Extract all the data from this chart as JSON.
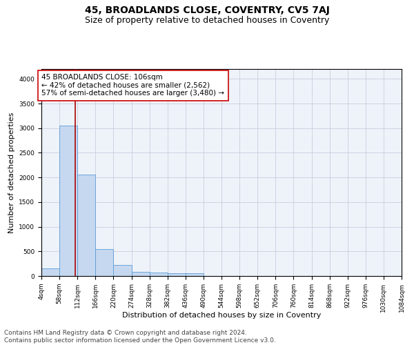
{
  "title": "45, BROADLANDS CLOSE, COVENTRY, CV5 7AJ",
  "subtitle": "Size of property relative to detached houses in Coventry",
  "xlabel": "Distribution of detached houses by size in Coventry",
  "ylabel": "Number of detached properties",
  "footer_line1": "Contains HM Land Registry data © Crown copyright and database right 2024.",
  "footer_line2": "Contains public sector information licensed under the Open Government Licence v3.0.",
  "property_size": 106,
  "annotation_line1": "45 BROADLANDS CLOSE: 106sqm",
  "annotation_line2": "← 42% of detached houses are smaller (2,562)",
  "annotation_line3": "57% of semi-detached houses are larger (3,480) →",
  "bin_edges": [
    4,
    58,
    112,
    166,
    220,
    274,
    328,
    382,
    436,
    490,
    544,
    598,
    652,
    706,
    760,
    814,
    868,
    922,
    976,
    1030,
    1084
  ],
  "bin_counts": [
    150,
    3050,
    2060,
    550,
    220,
    80,
    65,
    50,
    55,
    0,
    0,
    0,
    0,
    0,
    0,
    0,
    0,
    0,
    0,
    0
  ],
  "bar_color": "#c5d8f0",
  "bar_edge_color": "#5b9bd5",
  "red_line_color": "#aa0000",
  "annotation_box_color": "#ffffff",
  "annotation_box_edge_color": "#cc0000",
  "grid_color": "#ccccdd",
  "bg_color": "#eef3fa",
  "title_fontsize": 10,
  "subtitle_fontsize": 9,
  "axis_label_fontsize": 8,
  "tick_fontsize": 6.5,
  "annotation_fontsize": 7.5,
  "footer_fontsize": 6.5
}
